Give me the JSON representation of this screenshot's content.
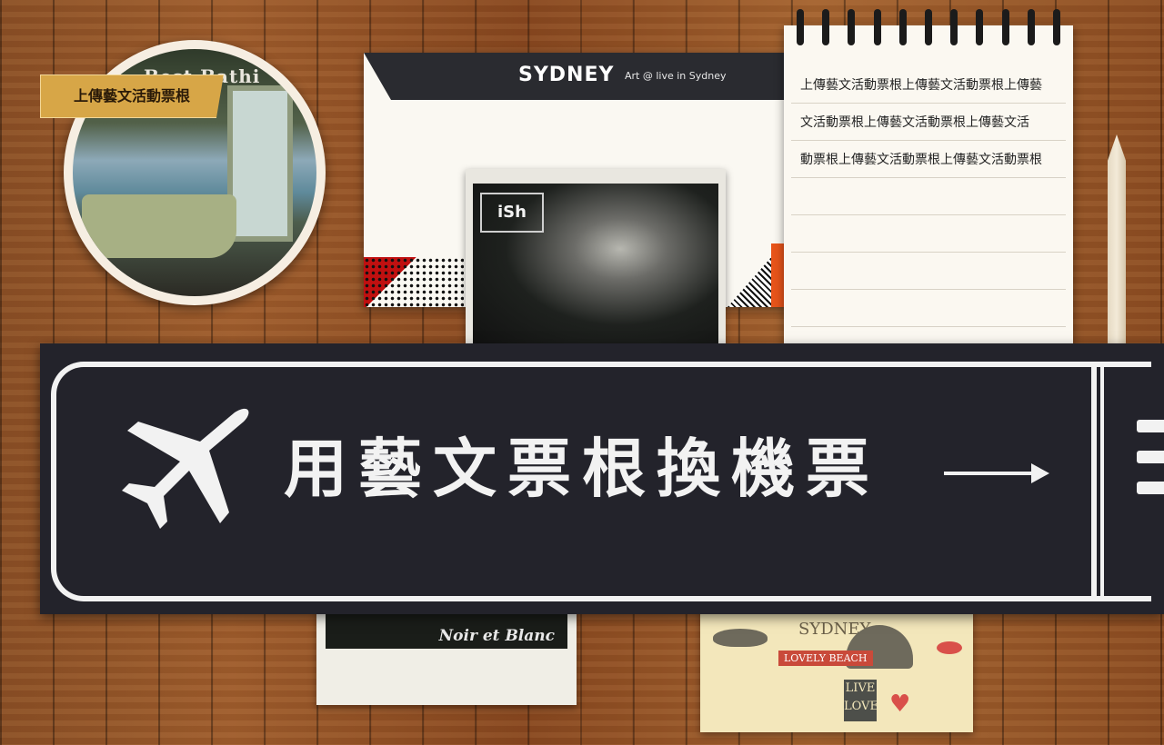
{
  "circle_photo": {
    "title": "Best Bathi",
    "badge": "上傳藝文活動票根"
  },
  "card": {
    "logo": "SYDNEY",
    "tagline": "Art @ live in Sydney"
  },
  "album": {
    "logo": "iSh"
  },
  "notepad": {
    "lines": [
      "上傳藝文活動票根上傳藝文活動票根上傳藝",
      "文活動票根上傳藝文活動票根上傳藝文活",
      "動票根上傳藝文活動票根上傳藝文活動票根"
    ]
  },
  "banner": {
    "text": "用藝文票根換機票",
    "icons": {
      "plane": "airplane-icon",
      "arrow": "arrow-right-icon",
      "menu": "menu-icon"
    }
  },
  "polaroid": {
    "text": "Noir et Blanc"
  },
  "poster": {
    "city": "SYDNEY",
    "ribbon": "LOVELY BEACH",
    "sign": "LIVE LOVE"
  },
  "colors": {
    "banner_bg": "#23232b",
    "badge_bg": "#d7a647",
    "wood": "#8a4f25"
  }
}
